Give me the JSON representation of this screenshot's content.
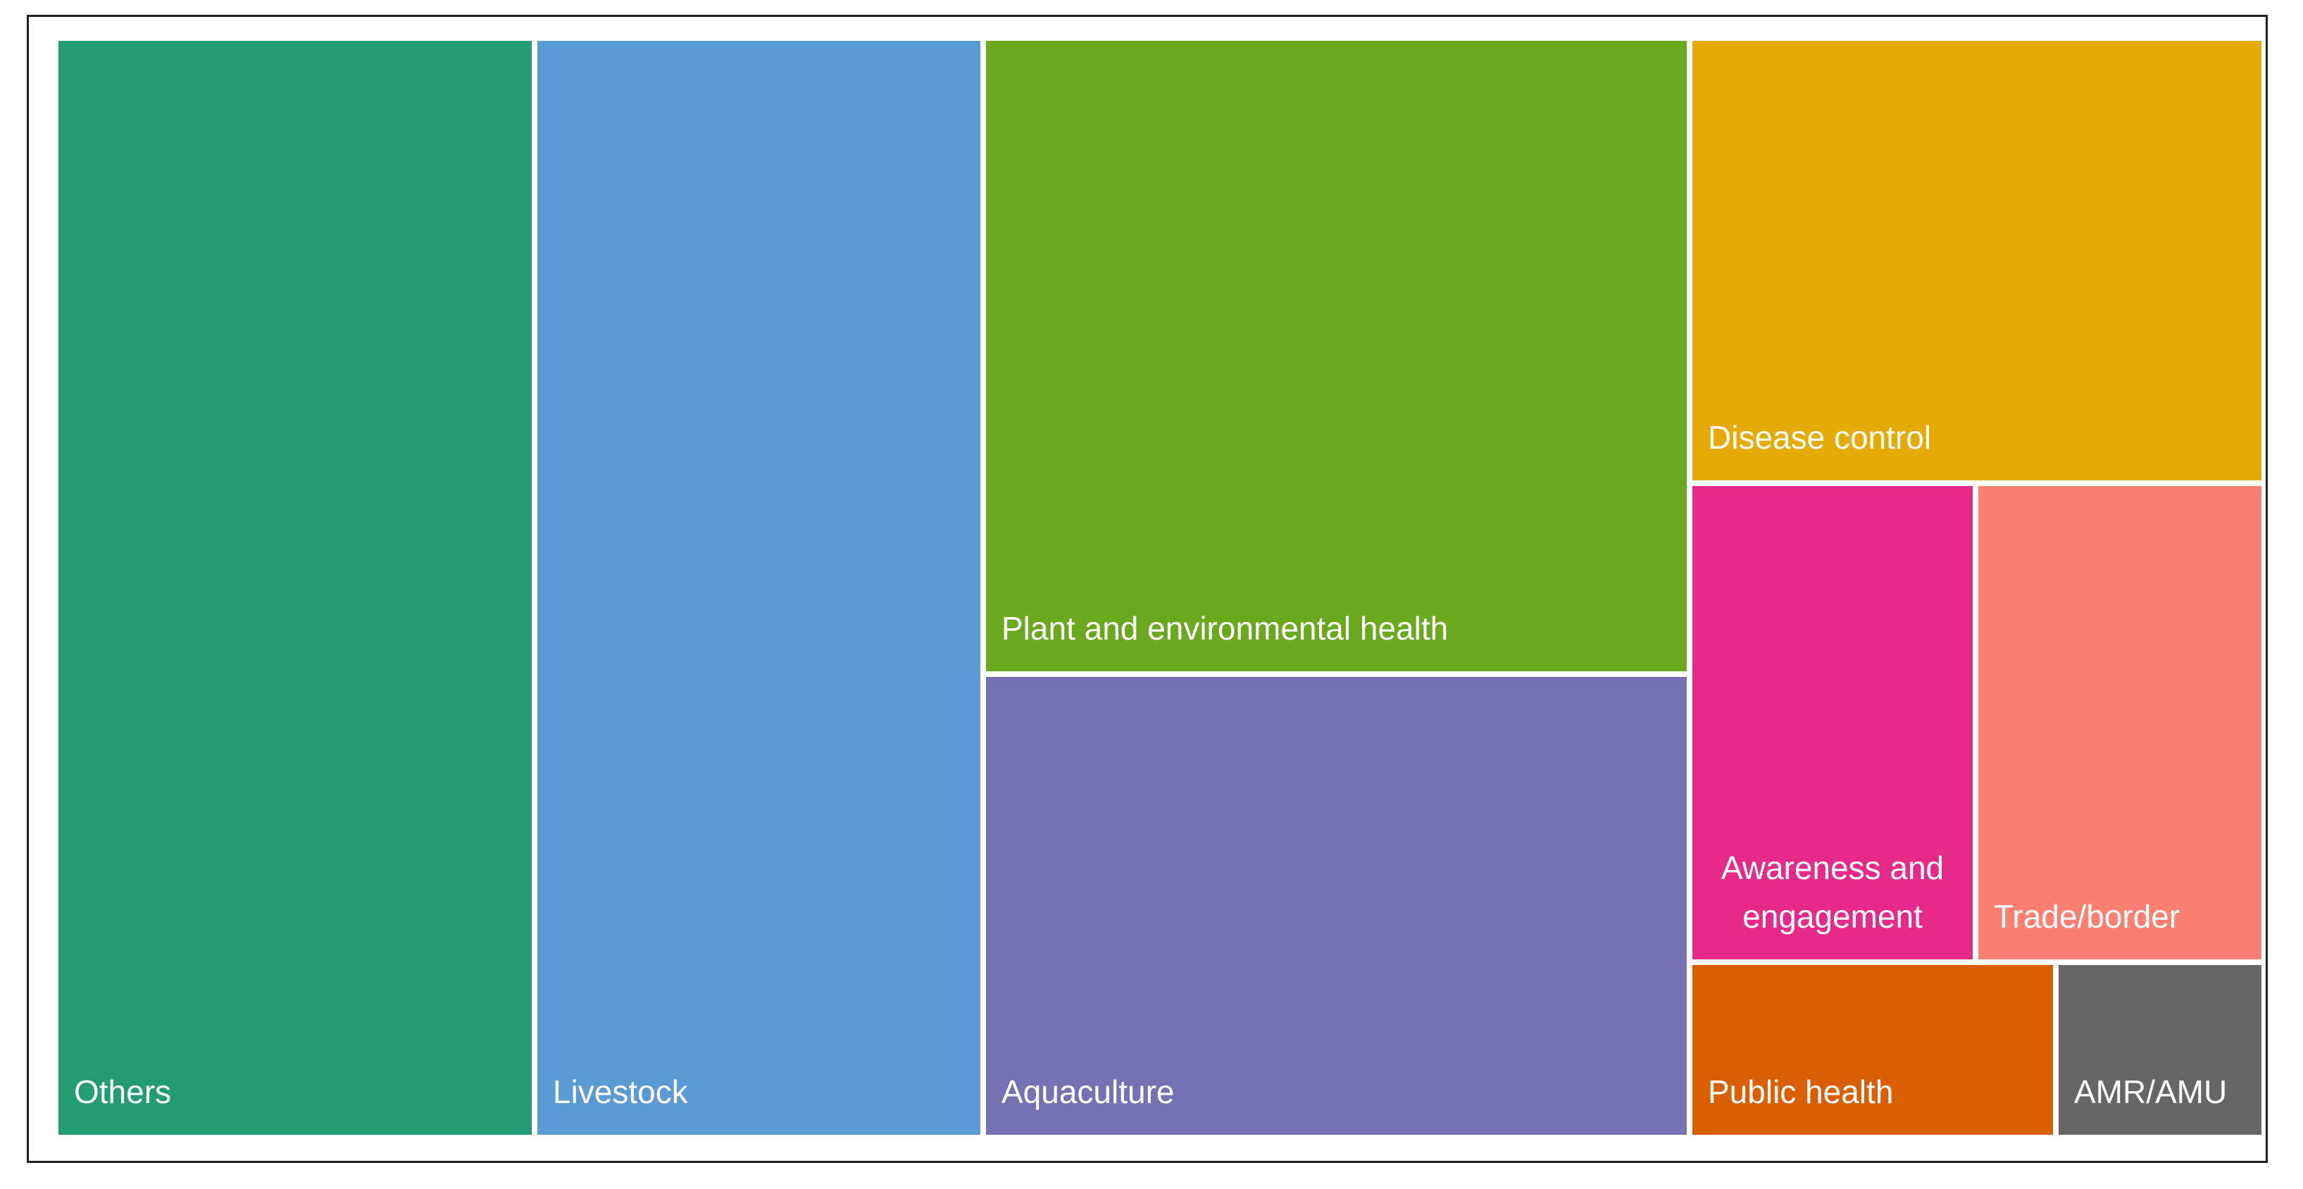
{
  "chart_data": {
    "type": "treemap",
    "title": "",
    "categories": [
      "Others",
      "Livestock",
      "Plant and environmental health",
      "Aquaculture",
      "Disease control",
      "Awareness and engagement",
      "Trade/border",
      "Public health",
      "AMR/AMU"
    ],
    "values": [
      20.7,
      19.3,
      17.6,
      13.2,
      11.4,
      6.9,
      6.9,
      2.8,
      1.6
    ],
    "value_note": "relative tile areas, percent of total (estimated; no values printed)",
    "colors": [
      "#239c74",
      "#5b9bd5",
      "#6aa81e",
      "#7572b3",
      "#e6ab02",
      "#e7298a",
      "#fb8072",
      "#d95f02",
      "#666666"
    ],
    "label_lines": [
      "Others",
      "Livestock",
      "Plant and environmental health",
      "Aquaculture",
      "Disease control",
      "Awareness and\nengagement",
      "Trade/border",
      "Public health",
      "AMR/AMU"
    ]
  }
}
